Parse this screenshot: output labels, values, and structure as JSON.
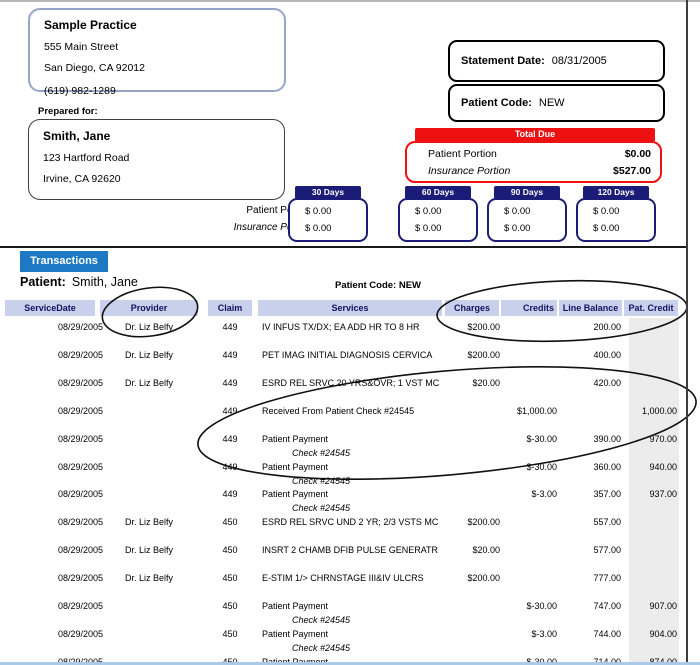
{
  "practice": {
    "name": "Sample Practice",
    "address_line1": "555 Main Street",
    "address_line2": "San Diego, CA 92012",
    "phone": "(619) 982-1289"
  },
  "prepared_for": {
    "label": "Prepared for:",
    "name": "Smith, Jane",
    "address_line1": "123 Hartford Road",
    "address_line2": "Irvine, CA 92620"
  },
  "statement": {
    "date_label": "Statement Date:",
    "date": "08/31/2005",
    "code_label": "Patient Code:",
    "code": "NEW"
  },
  "total_due": {
    "title": "Total Due",
    "rows": [
      {
        "label": "Patient Portion",
        "amount": "$0.00"
      },
      {
        "label": "Insurance Portion",
        "amount": "$527.00"
      }
    ]
  },
  "aging": {
    "row_labels": [
      "Patient Portion",
      "Insurance Portion"
    ],
    "buckets": [
      {
        "label": "30 Days",
        "patient": "$ 0.00",
        "insurance": "$ 0.00"
      },
      {
        "label": "60 Days",
        "patient": "$ 0.00",
        "insurance": "$ 0.00"
      },
      {
        "label": "90 Days",
        "patient": "$ 0.00",
        "insurance": "$ 0.00"
      },
      {
        "label": "120 Days",
        "patient": "$ 0.00",
        "insurance": "$ 0.00"
      }
    ]
  },
  "transactions": {
    "tab_label": "Transactions",
    "patient_label": "Patient:",
    "patient_name": "Smith, Jane",
    "patient_code_text": "Patient Code: NEW",
    "columns": [
      "ServiceDate",
      "Provider",
      "Claim",
      "Services",
      "Charges",
      "Credits",
      "Line Balance",
      "Pat. Credit"
    ],
    "rows": [
      {
        "date": "08/29/2005",
        "provider": "Dr. Liz Belfy",
        "claim": "449",
        "service": "IV INFUS TX/DX; EA ADD HR TO 8 HR",
        "note": "",
        "charges": "$200.00",
        "credits": "",
        "balance": "200.00",
        "pat_credit": ""
      },
      {
        "date": "08/29/2005",
        "provider": "Dr. Liz Belfy",
        "claim": "449",
        "service": "PET IMAG INITIAL DIAGNOSIS CERVICA",
        "note": "",
        "charges": "$200.00",
        "credits": "",
        "balance": "400.00",
        "pat_credit": ""
      },
      {
        "date": "08/29/2005",
        "provider": "Dr. Liz Belfy",
        "claim": "449",
        "service": "ESRD REL SRVC 20 YRS&OVR; 1 VST MC",
        "note": "",
        "charges": "$20.00",
        "credits": "",
        "balance": "420.00",
        "pat_credit": ""
      },
      {
        "date": "08/29/2005",
        "provider": "",
        "claim": "449",
        "service": "Received From Patient Check #24545",
        "note": "",
        "charges": "",
        "credits": "$1,000.00",
        "balance": "",
        "pat_credit": "1,000.00"
      },
      {
        "date": "08/29/2005",
        "provider": "",
        "claim": "449",
        "service": "Patient Payment",
        "note": "Check #24545",
        "charges": "",
        "credits": "$-30.00",
        "balance": "390.00",
        "pat_credit": "970.00"
      },
      {
        "date": "08/29/2005",
        "provider": "",
        "claim": "449",
        "service": "Patient Payment",
        "note": "Check #24545",
        "charges": "",
        "credits": "$-30.00",
        "balance": "360.00",
        "pat_credit": "940.00"
      },
      {
        "date": "08/29/2005",
        "provider": "",
        "claim": "449",
        "service": "Patient Payment",
        "note": "Check #24545",
        "charges": "",
        "credits": "$-3.00",
        "balance": "357.00",
        "pat_credit": "937.00"
      },
      {
        "date": "08/29/2005",
        "provider": "Dr. Liz Belfy",
        "claim": "450",
        "service": "ESRD REL SRVC UND 2 YR; 2/3 VSTS MC",
        "note": "",
        "charges": "$200.00",
        "credits": "",
        "balance": "557.00",
        "pat_credit": ""
      },
      {
        "date": "08/29/2005",
        "provider": "Dr. Liz Belfy",
        "claim": "450",
        "service": "INSRT 2 CHAMB DFIB PULSE GENERATR",
        "note": "",
        "charges": "$20.00",
        "credits": "",
        "balance": "577.00",
        "pat_credit": ""
      },
      {
        "date": "08/29/2005",
        "provider": "Dr. Liz Belfy",
        "claim": "450",
        "service": "E-STIM 1/> CHRNSTAGE III&IV ULCRS",
        "note": "",
        "charges": "$200.00",
        "credits": "",
        "balance": "777.00",
        "pat_credit": ""
      },
      {
        "date": "08/29/2005",
        "provider": "",
        "claim": "450",
        "service": "Patient Payment",
        "note": "Check #24545",
        "charges": "",
        "credits": "$-30.00",
        "balance": "747.00",
        "pat_credit": "907.00"
      },
      {
        "date": "08/29/2005",
        "provider": "",
        "claim": "450",
        "service": "Patient Payment",
        "note": "Check #24545",
        "charges": "",
        "credits": "$-3.00",
        "balance": "744.00",
        "pat_credit": "904.00"
      },
      {
        "date": "08/29/2005",
        "provider": "",
        "claim": "450",
        "service": "Patient Payment",
        "note": "Check #24545",
        "charges": "",
        "credits": "$-30.00",
        "balance": "714.00",
        "pat_credit": "874.00"
      }
    ]
  },
  "annotations": [
    "provider-column-circle",
    "amount-columns-circle",
    "payment-rows-circle"
  ],
  "colors": {
    "navy": "#1b1b78",
    "red": "#ee1111",
    "tab_blue": "#1d79c4",
    "header_bg": "#c9d0ec",
    "gray_column": "#ececec"
  }
}
